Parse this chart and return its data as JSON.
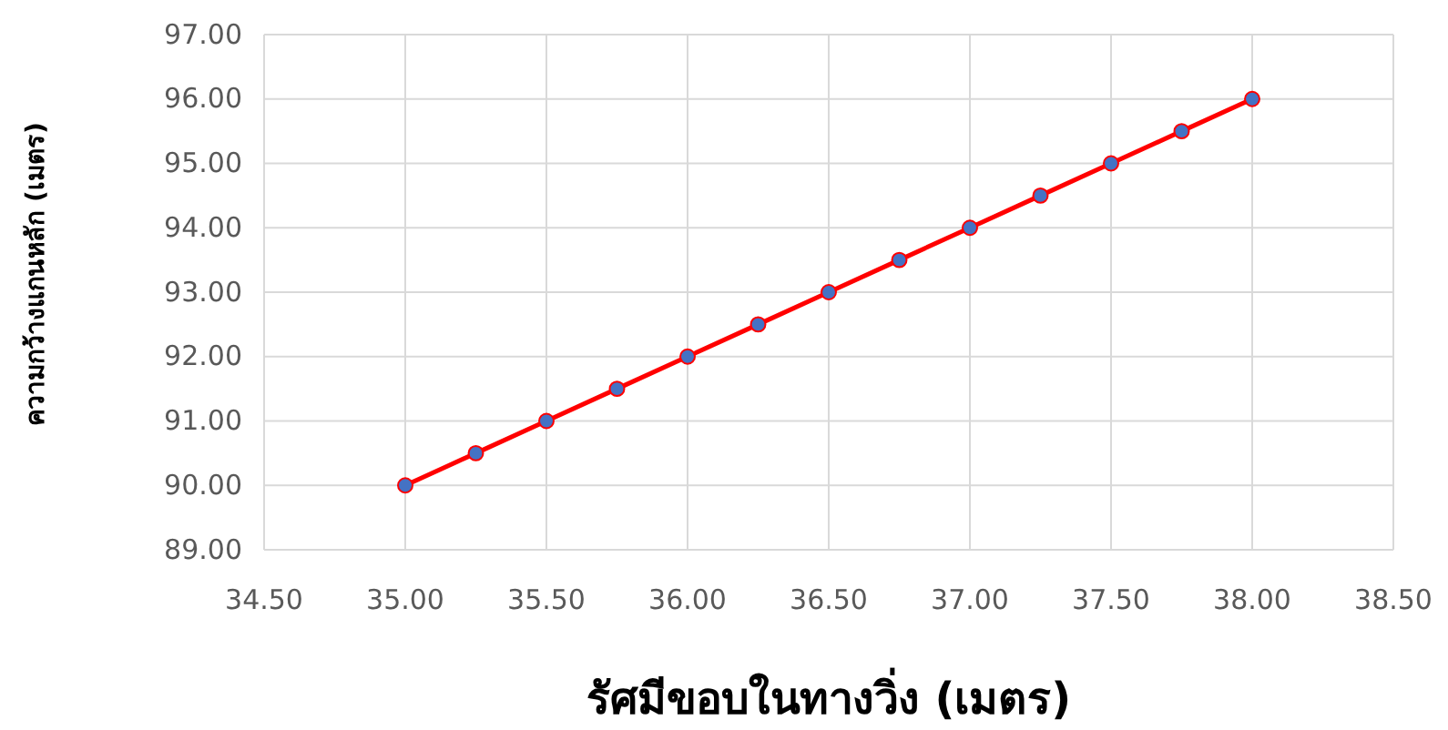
{
  "chart_data": {
    "type": "line",
    "xlabel": "รัศมีขอบในทางวิ่ง (เมตร)",
    "ylabel": "ความกว้างแกนหลัก (เมตร)",
    "x": [
      35,
      35.25,
      35.5,
      35.75,
      36,
      36.25,
      36.5,
      36.75,
      37,
      37.25,
      37.5,
      37.75,
      38
    ],
    "series": [
      {
        "color": "#ff0000",
        "values": [
          90,
          90.5,
          91,
          91.5,
          92,
          92.5,
          93,
          93.5,
          94,
          94.5,
          95,
          95.5,
          96
        ]
      }
    ],
    "xlim": [
      34.5,
      38.5
    ],
    "xticks": [
      {
        "value": 34.5,
        "label": "34.50"
      },
      {
        "value": 35,
        "label": "35.00"
      },
      {
        "value": 35.5,
        "label": "35.50"
      },
      {
        "value": 36,
        "label": "36.00"
      },
      {
        "value": 36.5,
        "label": "36.50"
      },
      {
        "value": 37,
        "label": "37.00"
      },
      {
        "value": 37.5,
        "label": "37.50"
      },
      {
        "value": 38,
        "label": "38.00"
      },
      {
        "value": 38.5,
        "label": "38.50"
      }
    ],
    "ylim": [
      89,
      97
    ],
    "yticks": [
      {
        "value": 89,
        "label": "89.00"
      },
      {
        "value": 90,
        "label": "90.00"
      },
      {
        "value": 91,
        "label": "91.00"
      },
      {
        "value": 92,
        "label": "92.00"
      },
      {
        "value": 93,
        "label": "93.00"
      },
      {
        "value": 94,
        "label": "94.00"
      },
      {
        "value": 95,
        "label": "95.00"
      },
      {
        "value": 96,
        "label": "96.00"
      },
      {
        "value": 97,
        "label": "97.00"
      }
    ],
    "grid": true,
    "marker": "circle",
    "line_style": "solid"
  }
}
